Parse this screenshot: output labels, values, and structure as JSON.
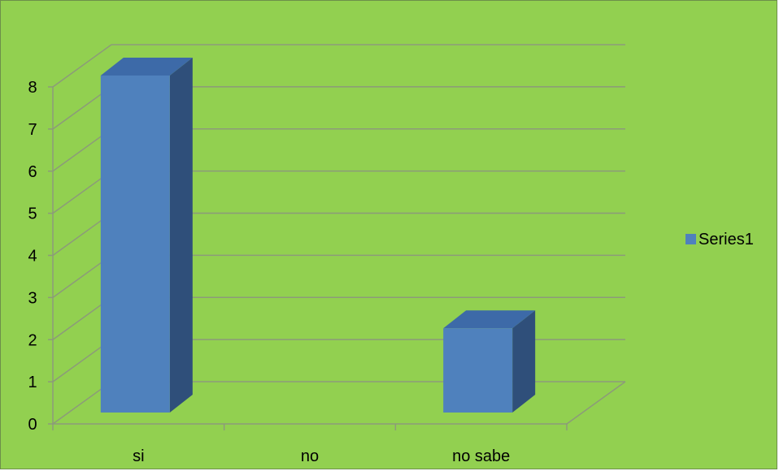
{
  "chart_data": {
    "type": "bar",
    "categories": [
      "si",
      "no",
      "no sabe"
    ],
    "series": [
      {
        "name": "Series1",
        "values": [
          8,
          0,
          2
        ]
      }
    ],
    "title": "",
    "xlabel": "",
    "ylabel": "",
    "ylim": [
      0,
      8
    ],
    "yticks": [
      "0",
      "1",
      "2",
      "3",
      "4",
      "5",
      "6",
      "7",
      "8"
    ],
    "grid": true,
    "legend": "right",
    "colors": {
      "background": "#92d050",
      "bar_front": "#4f81bd",
      "bar_side": "#2f4f7a",
      "bar_top": "#3d6aa8",
      "grid": "#8c9a7a"
    }
  }
}
